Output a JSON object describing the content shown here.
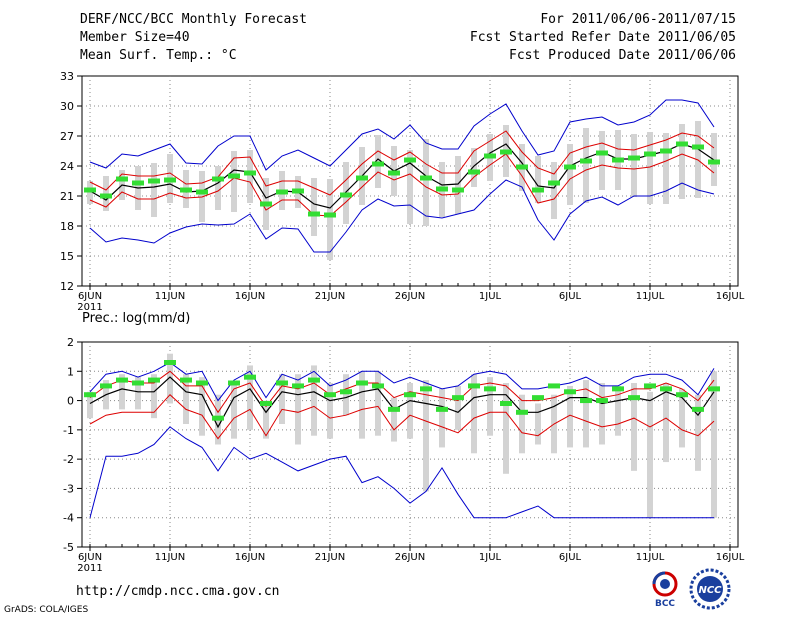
{
  "header": {
    "title": "DERF/NCC/BCC Monthly Forecast",
    "member_size": "Member Size=40",
    "variable": "Mean Surf. Temp.: °C",
    "period": "For 2011/06/06-2011/07/15",
    "start_date": "Fcst Started Refer Date 2011/06/05",
    "produced_date": "Fcst Produced Date 2011/06/06"
  },
  "footer": {
    "url": "http://cmdp.ncc.cma.gov.cn",
    "credit": "GrADS: COLA/IGES",
    "logo_bcc": "BCC",
    "logo_ncc": "NCC"
  },
  "colors": {
    "envelope": "#0000cc",
    "spread": "#dd0000",
    "mean": "#000000",
    "bar": "#d3d3d3",
    "marker": "#33dd33",
    "grid": "#888888"
  },
  "chart_data": [
    {
      "type": "line",
      "title": "Mean Surf. Temp.: °C",
      "ylim": [
        12,
        33
      ],
      "yticks": [
        "12",
        "15",
        "18",
        "21",
        "24",
        "27",
        "30",
        "33"
      ],
      "xlim": [
        1,
        41
      ],
      "x_ticks": [
        {
          "day": 1,
          "label": "6JUN",
          "sub": "2011"
        },
        {
          "day": 6,
          "label": "11JUN"
        },
        {
          "day": 11,
          "label": "16JUN"
        },
        {
          "day": 16,
          "label": "21JUN"
        },
        {
          "day": 21,
          "label": "26JUN"
        },
        {
          "day": 26,
          "label": "1JUL"
        },
        {
          "day": 31,
          "label": "6JUL"
        },
        {
          "day": 36,
          "label": "11JUL"
        },
        {
          "day": 41,
          "label": "16JUL"
        }
      ],
      "series": [
        {
          "name": "max",
          "role": "envelope",
          "values": [
            24.4,
            23.8,
            25.2,
            25.0,
            25.6,
            26.2,
            24.3,
            24.2,
            26.0,
            27.0,
            27.0,
            23.6,
            25.0,
            25.6,
            24.8,
            24.0,
            25.6,
            27.2,
            27.7,
            26.7,
            28.1,
            26.3,
            25.7,
            25.7,
            28.0,
            29.2,
            30.2,
            27.5,
            25.1,
            25.5,
            28.4,
            28.7,
            28.9,
            28.1,
            28.4,
            29.1,
            30.6,
            30.6,
            30.3,
            27.9
          ]
        },
        {
          "name": "upper",
          "role": "spread",
          "values": [
            22.4,
            21.6,
            23.2,
            23.0,
            23.0,
            23.3,
            22.2,
            22.3,
            22.9,
            24.8,
            24.9,
            22.0,
            22.5,
            22.5,
            21.8,
            21.1,
            22.6,
            24.2,
            25.5,
            24.6,
            25.4,
            24.2,
            23.3,
            23.3,
            25.5,
            26.5,
            27.5,
            25.4,
            23.8,
            23.2,
            25.3,
            25.9,
            26.3,
            25.7,
            25.6,
            26.1,
            26.6,
            27.3,
            27.0,
            25.8
          ]
        },
        {
          "name": "mean",
          "role": "mean",
          "values": [
            21.5,
            20.6,
            22.1,
            21.8,
            21.9,
            22.2,
            21.4,
            21.5,
            22.3,
            23.6,
            23.4,
            20.8,
            21.5,
            21.4,
            20.2,
            19.8,
            21.4,
            23.0,
            24.7,
            23.5,
            24.3,
            23.0,
            22.1,
            22.2,
            24.0,
            25.3,
            26.2,
            24.3,
            22.0,
            21.8,
            24.0,
            24.8,
            25.4,
            24.7,
            24.7,
            25.1,
            25.5,
            26.2,
            25.7,
            24.6
          ]
        },
        {
          "name": "lower",
          "role": "spread",
          "values": [
            20.6,
            19.9,
            21.4,
            20.7,
            20.7,
            21.3,
            20.8,
            20.9,
            21.5,
            22.8,
            22.4,
            19.6,
            20.6,
            20.6,
            19.1,
            19.0,
            20.4,
            21.9,
            23.4,
            22.6,
            23.2,
            21.9,
            21.1,
            21.2,
            22.9,
            24.1,
            25.2,
            23.0,
            20.3,
            20.7,
            22.7,
            23.6,
            24.1,
            23.8,
            23.7,
            23.9,
            24.5,
            25.2,
            24.6,
            23.3
          ]
        },
        {
          "name": "min",
          "role": "envelope",
          "values": [
            17.8,
            16.4,
            16.8,
            16.6,
            16.3,
            17.3,
            17.9,
            18.2,
            18.1,
            18.2,
            19.2,
            16.7,
            17.8,
            17.7,
            15.4,
            15.4,
            17.4,
            19.6,
            20.7,
            20.0,
            20.1,
            19.0,
            18.8,
            19.2,
            19.6,
            21.2,
            22.6,
            21.9,
            18.6,
            16.6,
            19.2,
            20.5,
            20.9,
            20.1,
            21.0,
            21.0,
            21.5,
            22.3,
            21.6,
            21.2
          ]
        },
        {
          "name": "bar_high",
          "values": [
            22.5,
            23.0,
            23.6,
            24.0,
            24.3,
            25.2,
            23.6,
            23.5,
            24.0,
            25.5,
            25.6,
            22.8,
            23.5,
            23.0,
            22.8,
            22.7,
            24.4,
            25.9,
            27.1,
            26.0,
            25.6,
            26.7,
            24.4,
            25.0,
            25.8,
            27.2,
            28.1,
            26.2,
            25.0,
            24.4,
            26.2,
            27.8,
            27.5,
            27.6,
            27.2,
            27.4,
            27.3,
            28.2,
            28.5,
            27.3
          ]
        },
        {
          "name": "bar_low",
          "values": [
            20.2,
            19.5,
            20.6,
            19.6,
            18.9,
            20.3,
            19.8,
            18.4,
            19.6,
            19.4,
            20.3,
            17.6,
            19.6,
            19.8,
            17.0,
            14.6,
            18.2,
            20.1,
            21.8,
            21.0,
            18.2,
            18.0,
            18.9,
            19.2,
            21.9,
            22.5,
            22.9,
            21.5,
            20.3,
            18.7,
            20.1,
            20.3,
            21.6,
            21.6,
            20.9,
            20.2,
            20.2,
            20.7,
            20.8,
            22.0
          ]
        },
        {
          "name": "observed",
          "values": [
            21.6,
            21.0,
            22.7,
            22.3,
            22.5,
            22.6,
            21.6,
            21.4,
            22.7,
            23.0,
            23.3,
            20.2,
            21.4,
            21.5,
            19.2,
            19.1,
            21.1,
            22.8,
            24.2,
            23.3,
            24.6,
            22.8,
            21.7,
            21.6,
            23.4,
            25.0,
            25.4,
            23.9,
            21.6,
            22.3,
            23.9,
            24.5,
            25.3,
            24.6,
            24.8,
            25.2,
            25.5,
            26.2,
            25.9,
            24.4
          ]
        }
      ]
    },
    {
      "type": "line",
      "title": "Prec.: log(mm/d)",
      "ylim": [
        -5,
        2
      ],
      "yticks": [
        "-5",
        "-4",
        "-3",
        "-2",
        "-1",
        "0",
        "1",
        "2"
      ],
      "xlim": [
        1,
        41
      ],
      "x_ticks": [
        {
          "day": 1,
          "label": "6JUN",
          "sub": "2011"
        },
        {
          "day": 6,
          "label": "11JUN"
        },
        {
          "day": 11,
          "label": "16JUN"
        },
        {
          "day": 16,
          "label": "21JUN"
        },
        {
          "day": 21,
          "label": "26JUN"
        },
        {
          "day": 26,
          "label": "1JUL"
        },
        {
          "day": 31,
          "label": "6JUL"
        },
        {
          "day": 36,
          "label": "11JUL"
        },
        {
          "day": 41,
          "label": "16JUL"
        }
      ],
      "series": [
        {
          "name": "max",
          "role": "envelope",
          "values": [
            0.3,
            0.9,
            1.0,
            0.8,
            1.0,
            1.3,
            0.9,
            1.0,
            0.0,
            0.7,
            1.0,
            0.1,
            0.9,
            0.7,
            1.0,
            0.5,
            0.7,
            1.0,
            1.0,
            0.6,
            0.8,
            0.6,
            0.4,
            0.5,
            0.9,
            1.0,
            0.9,
            0.4,
            0.4,
            0.5,
            0.6,
            0.8,
            0.5,
            0.5,
            0.8,
            0.9,
            0.9,
            0.7,
            0.2,
            1.1
          ]
        },
        {
          "name": "upper",
          "role": "spread",
          "values": [
            0.1,
            0.5,
            0.7,
            0.6,
            0.6,
            1.0,
            0.5,
            0.5,
            -0.4,
            0.4,
            0.6,
            -0.2,
            0.5,
            0.4,
            0.6,
            0.2,
            0.4,
            0.6,
            0.6,
            0.1,
            0.3,
            0.2,
            0.1,
            0.0,
            0.5,
            0.6,
            0.5,
            0.0,
            0.0,
            0.1,
            0.3,
            0.4,
            0.1,
            0.2,
            0.4,
            0.4,
            0.6,
            0.4,
            0.0,
            0.7
          ]
        },
        {
          "name": "mean",
          "role": "mean",
          "values": [
            -0.1,
            0.2,
            0.4,
            0.3,
            0.3,
            0.8,
            0.3,
            0.2,
            -0.9,
            0.1,
            0.4,
            -0.4,
            0.3,
            0.2,
            0.3,
            0.0,
            0.1,
            0.3,
            0.4,
            -0.3,
            0.0,
            -0.1,
            -0.2,
            -0.4,
            0.1,
            0.2,
            0.2,
            -0.4,
            -0.4,
            -0.2,
            0.1,
            0.1,
            -0.1,
            0.0,
            0.1,
            0.0,
            0.3,
            0.1,
            -0.5,
            0.3
          ]
        },
        {
          "name": "lower",
          "role": "spread",
          "values": [
            -0.8,
            -0.5,
            -0.4,
            -0.4,
            -0.4,
            0.2,
            -0.3,
            -0.5,
            -1.3,
            -0.6,
            -0.3,
            -1.2,
            -0.3,
            -0.4,
            -0.2,
            -0.6,
            -0.5,
            -0.3,
            -0.2,
            -1.0,
            -0.5,
            -0.7,
            -0.9,
            -1.1,
            -0.6,
            -0.4,
            -0.4,
            -1.1,
            -1.2,
            -0.8,
            -0.5,
            -0.7,
            -0.9,
            -0.8,
            -0.6,
            -0.9,
            -0.6,
            -1.0,
            -1.2,
            -0.7
          ]
        },
        {
          "name": "min",
          "role": "envelope",
          "values": [
            -4.0,
            -1.9,
            -1.9,
            -1.8,
            -1.5,
            -0.9,
            -1.3,
            -1.6,
            -2.4,
            -1.6,
            -2.0,
            -1.8,
            -2.1,
            -2.4,
            -2.2,
            -2.0,
            -1.9,
            -2.8,
            -2.6,
            -3.0,
            -3.5,
            -3.1,
            -2.3,
            -3.2,
            -4.0,
            -4.0,
            -4.0,
            -3.8,
            -3.6,
            -4.0,
            -4.0,
            -4.0,
            -4.0,
            -4.0,
            -4.0,
            -4.0,
            -4.0,
            -4.0,
            -4.0,
            -4.0
          ]
        },
        {
          "name": "bar_high",
          "values": [
            0.3,
            0.7,
            0.9,
            0.8,
            0.9,
            1.6,
            0.9,
            0.8,
            0.2,
            0.6,
            1.2,
            0.0,
            0.9,
            0.9,
            1.2,
            0.6,
            0.9,
            1.0,
            1.0,
            0.1,
            0.6,
            0.7,
            0.4,
            0.5,
            0.9,
            0.8,
            0.6,
            0.2,
            -0.1,
            0.2,
            0.5,
            0.7,
            0.6,
            0.5,
            0.6,
            0.3,
            0.6,
            0.4,
            0.2,
            1.0
          ]
        },
        {
          "name": "bar_low",
          "values": [
            -0.6,
            -0.3,
            -0.3,
            -0.3,
            -0.6,
            -0.1,
            -0.8,
            -1.2,
            -1.5,
            -1.3,
            -1.0,
            -1.3,
            -0.8,
            -1.5,
            -1.2,
            -1.3,
            -0.5,
            -1.3,
            -1.2,
            -1.4,
            -1.3,
            -3.1,
            -1.6,
            -1.0,
            -1.8,
            -1.2,
            -2.5,
            -1.8,
            -1.5,
            -1.8,
            -1.6,
            -1.6,
            -1.5,
            -1.2,
            -2.4,
            -4.0,
            -2.1,
            -1.6,
            -2.4,
            -4.0
          ]
        },
        {
          "name": "observed",
          "values": [
            0.2,
            0.5,
            0.7,
            0.6,
            0.7,
            1.3,
            0.7,
            0.6,
            -0.6,
            0.6,
            0.8,
            -0.1,
            0.6,
            0.5,
            0.7,
            0.2,
            0.3,
            0.6,
            0.5,
            -0.3,
            0.2,
            0.4,
            -0.3,
            0.1,
            0.5,
            0.4,
            -0.1,
            -0.4,
            0.1,
            0.5,
            0.3,
            0.0,
            0.0,
            0.4,
            0.1,
            0.5,
            0.4,
            0.2,
            -0.3,
            0.4
          ]
        }
      ]
    }
  ]
}
